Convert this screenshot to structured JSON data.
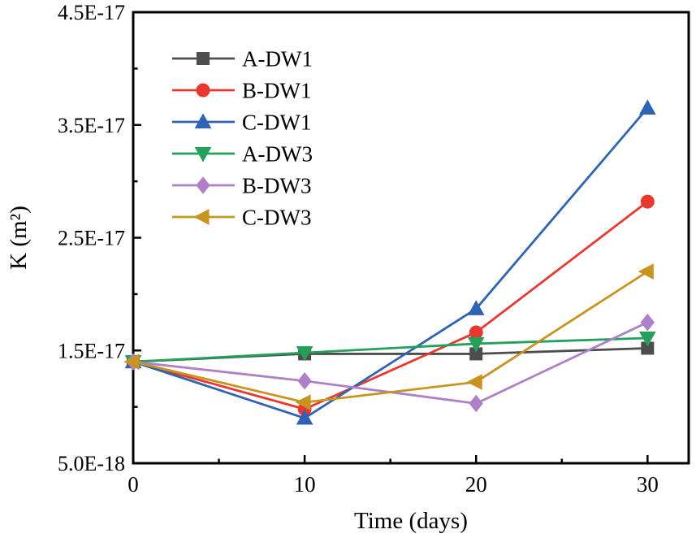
{
  "chart_data": {
    "type": "line",
    "title": "",
    "xlabel": "Time (days)",
    "ylabel": "K (m²)",
    "grid": false,
    "legend_position": "top-left-inside",
    "x": [
      0,
      10,
      20,
      30
    ],
    "xlim": [
      0,
      32.4
    ],
    "ylim": [
      5e-18,
      4.5e-17
    ],
    "x_axis": {
      "major_ticks": [
        0,
        10,
        20,
        30
      ],
      "major_tick_labels": [
        "0",
        "10",
        "20",
        "30"
      ],
      "minor_ticks": [
        5,
        15,
        25
      ]
    },
    "y_axis": {
      "major_ticks": [
        5e-18,
        1.5e-17,
        2.5e-17,
        3.5e-17,
        4.5e-17
      ],
      "major_tick_labels": [
        "5.0E-18",
        "1.5E-17",
        "2.5E-17",
        "3.5E-17",
        "4.5E-17"
      ],
      "minor_ticks": [
        1e-17,
        2e-17,
        3e-17,
        4e-17
      ]
    },
    "series": [
      {
        "name": "A-DW1",
        "color": "#4d4d4d",
        "marker": "square",
        "values": [
          1.4e-17,
          1.47e-17,
          1.47e-17,
          1.52e-17
        ]
      },
      {
        "name": "B-DW1",
        "color": "#e8382f",
        "marker": "circle",
        "values": [
          1.4e-17,
          9.8e-18,
          1.66e-17,
          2.82e-17
        ]
      },
      {
        "name": "C-DW1",
        "color": "#2f64b2",
        "marker": "triangle-up",
        "values": [
          1.4e-17,
          9e-18,
          1.87e-17,
          3.65e-17
        ]
      },
      {
        "name": "A-DW3",
        "color": "#25a05a",
        "marker": "triangle-down",
        "values": [
          1.4e-17,
          1.48e-17,
          1.56e-17,
          1.61e-17
        ]
      },
      {
        "name": "B-DW3",
        "color": "#ae80c8",
        "marker": "diamond",
        "values": [
          1.4e-17,
          1.23e-17,
          1.03e-17,
          1.75e-17
        ]
      },
      {
        "name": "C-DW3",
        "color": "#c8941f",
        "marker": "triangle-left",
        "values": [
          1.4e-17,
          1.04e-17,
          1.22e-17,
          2.2e-17
        ]
      }
    ]
  }
}
